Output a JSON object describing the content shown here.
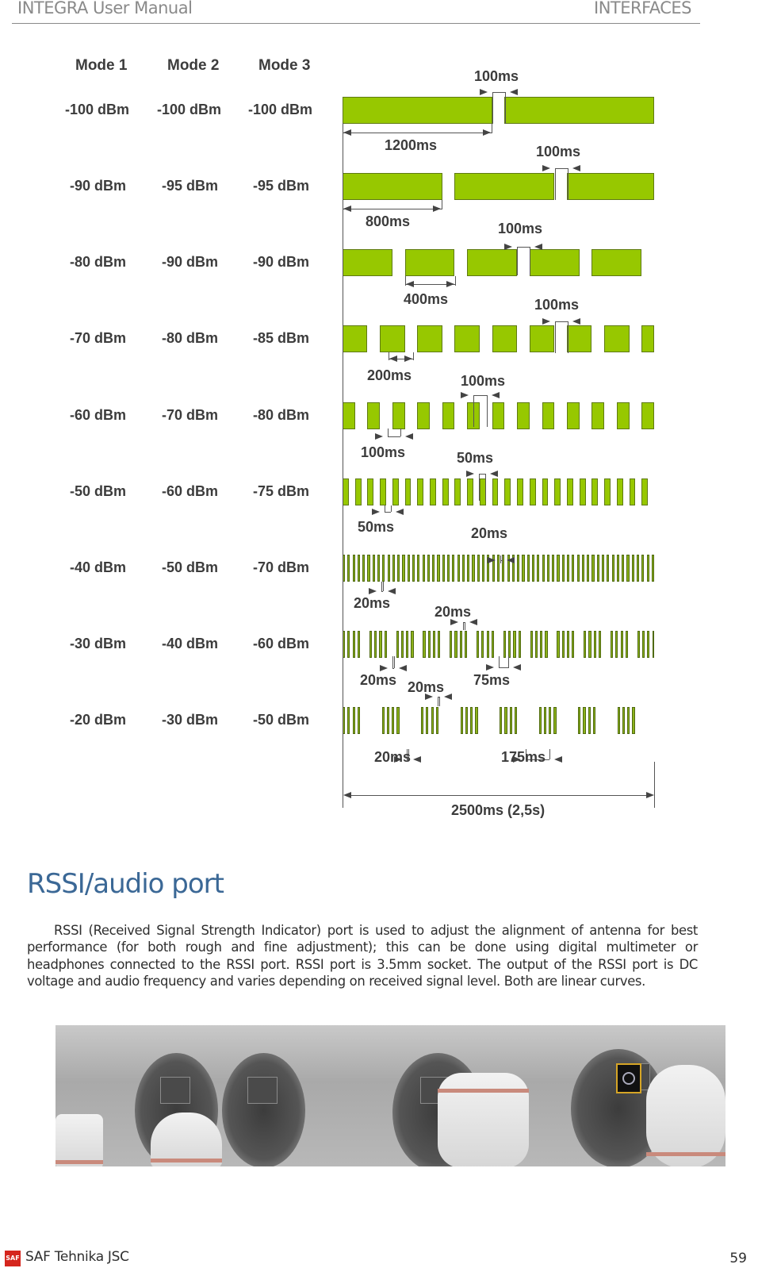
{
  "header": {
    "left": "INTEGRA User Manual",
    "right": "INTERFACES"
  },
  "diagram": {
    "mode_headers": [
      "Mode 1",
      "Mode 2",
      "Mode 3"
    ],
    "rows": [
      {
        "mode1": "-100 dBm",
        "mode2": "-100 dBm",
        "mode3": "-100 dBm",
        "on_ms": 1200,
        "off_ms": 100,
        "pattern": "continuous"
      },
      {
        "mode1": "-90 dBm",
        "mode2": "-95 dBm",
        "mode3": "-95 dBm",
        "on_ms": 800,
        "off_ms": 100,
        "pattern": "continuous"
      },
      {
        "mode1": "-80 dBm",
        "mode2": "-90 dBm",
        "mode3": "-90 dBm",
        "on_ms": 400,
        "off_ms": 100,
        "pattern": "continuous"
      },
      {
        "mode1": "-70 dBm",
        "mode2": "-80 dBm",
        "mode3": "-85 dBm",
        "on_ms": 200,
        "off_ms": 100,
        "pattern": "continuous"
      },
      {
        "mode1": "-60 dBm",
        "mode2": "-70 dBm",
        "mode3": "-80 dBm",
        "on_ms": 100,
        "off_ms": 100,
        "pattern": "continuous"
      },
      {
        "mode1": "-50 dBm",
        "mode2": "-60 dBm",
        "mode3": "-75 dBm",
        "on_ms": 50,
        "off_ms": 50,
        "pattern": "continuous"
      },
      {
        "mode1": "-40 dBm",
        "mode2": "-50 dBm",
        "mode3": "-70 dBm",
        "on_ms": 20,
        "off_ms": 20,
        "pattern": "continuous"
      },
      {
        "mode1": "-30 dBm",
        "mode2": "-40 dBm",
        "mode3": "-60 dBm",
        "on_ms": 20,
        "off_ms": 20,
        "group_size": 4,
        "group_gap_ms": 75,
        "pattern": "grouped"
      },
      {
        "mode1": "-20 dBm",
        "mode2": "-30 dBm",
        "mode3": "-50 dBm",
        "on_ms": 20,
        "off_ms": 20,
        "group_size": 4,
        "group_gap_ms": 175,
        "pattern": "grouped"
      }
    ],
    "labels": {
      "r0_top": "100ms",
      "r0_bottom": "1200ms",
      "r1_top": "100ms",
      "r1_bottom": "800ms",
      "r2_top": "100ms",
      "r2_bottom": "400ms",
      "r3_top": "100ms",
      "r3_bottom": "200ms",
      "r4_top": "100ms",
      "r4_bottom": "100ms",
      "r5_top": "50ms",
      "r5_bottom": "50ms",
      "r6_top": "20ms",
      "r6_bottom": "20ms",
      "r7_top": "20ms",
      "r7_bottom_a": "20ms",
      "r7_bottom_b": "75ms",
      "r8_top": "20ms",
      "r8_bottom_a": "20ms",
      "r8_bottom_b": "175ms",
      "total": "2500ms (2,5s)"
    },
    "pulse_color": "#97c800"
  },
  "section": {
    "title": "RSSI/audio port",
    "paragraph": "RSSI (Received Signal Strength Indicator) port is used to adjust the alignment of antenna for best performance (for both rough and fine adjustment); this can be done using digital multimeter or headphones connected to the RSSI port. RSSI port is 3.5mm socket. The output of the RSSI port is DC voltage and audio frequency and varies depending on received signal level. Both are linear curves."
  },
  "photo": {
    "description": "Device ports with RSSI socket highlighted",
    "highlight_color": "#d6a526"
  },
  "footer": {
    "logo": "SAF",
    "company": "SAF Tehnika JSC",
    "page": "59"
  }
}
